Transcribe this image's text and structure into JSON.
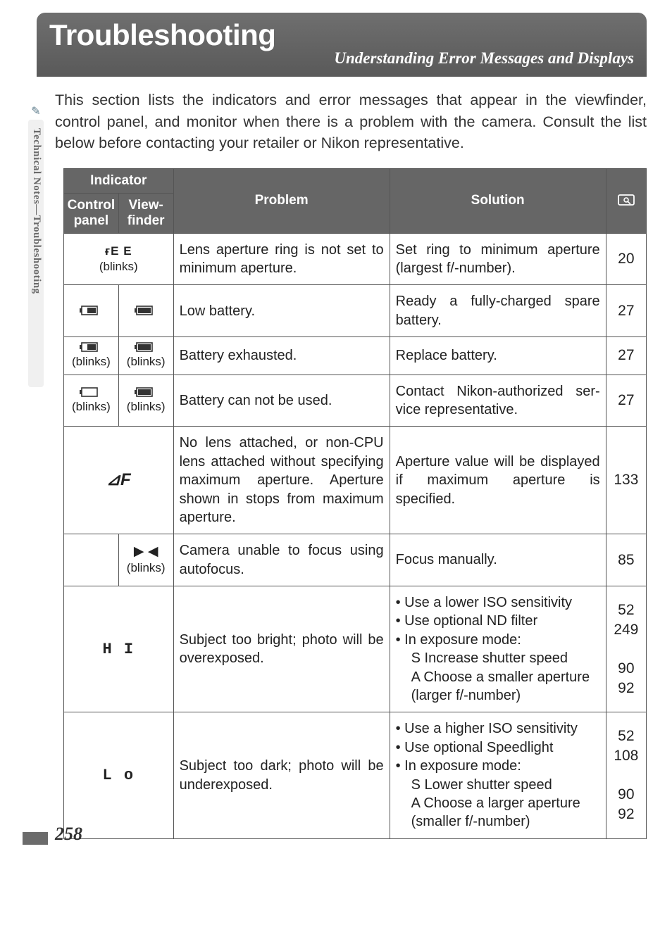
{
  "side_tab": "Technical Notes—Troubleshooting",
  "title": {
    "main": "Troubleshooting",
    "sub": "Understanding Error Messages and Displays"
  },
  "intro": "This section lists the indicators and error messages that appear in the view­finder, control panel, and monitor when there is a problem with the camera. Consult the list below before contacting your retailer or Nikon representa­tive.",
  "headers": {
    "indicator_group": "Indicator",
    "control_panel": "Control panel",
    "viewfinder": "View- finder",
    "problem": "Problem",
    "solution": "Solution"
  },
  "rows": [
    {
      "ind_merged": true,
      "ind_merged_text": "ғE E",
      "ind_merged_blinks": "(blinks)",
      "problem": "Lens aperture ring is not set to minimum aperture.",
      "solution_plain": "Set ring to minimum aperture (largest f/-number).",
      "ref": "20"
    },
    {
      "cp_icon": "batt-half",
      "vf_icon": "batt-bar",
      "problem": "Low battery.",
      "solution_plain": "Ready a fully-charged spare battery.",
      "ref": "27"
    },
    {
      "cp_icon": "batt-half",
      "cp_blinks": "(blinks)",
      "vf_icon": "batt-bar",
      "vf_blinks": "(blinks)",
      "problem": "Battery exhausted.",
      "solution_plain": "Replace battery.",
      "ref": "27"
    },
    {
      "cp_icon": "batt-empty",
      "cp_blinks": "(blinks)",
      "vf_icon": "batt-bar",
      "vf_blinks": "(blinks)",
      "problem": "Battery can not be used.",
      "solution_plain": "Contact Nikon-authorized ser­vice representative.",
      "ref": "27"
    },
    {
      "ind_merged": true,
      "ind_merged_seg": "⊿F",
      "problem": "No lens attached, or non-CPU lens attached without specifying maximum aperture. Aperture shown in stops from maximum aperture.",
      "solution_plain": "Aperture value will be dis­played if maximum aperture is specified.",
      "ref": "133"
    },
    {
      "cp_empty": true,
      "vf_text": "▶ ◀",
      "vf_blinks": "(blinks)",
      "problem": "Camera unable to focus using autofocus.",
      "solution_plain": "Focus manually.",
      "ref": "85"
    },
    {
      "ind_merged": true,
      "ind_merged_seg_text": "H I",
      "problem": "Subject too bright; photo will be overexposed.",
      "solution_list": {
        "bullets": [
          "• Use a lower ISO sensitivity",
          "• Use optional ND filter",
          "• In exposure mode:"
        ],
        "subs": [
          "S  Increase shutter speed",
          "A  Choose a smaller aperture (larger f/-number)"
        ]
      },
      "ref": "52\n249\n\n90\n92"
    },
    {
      "ind_merged": true,
      "ind_merged_seg_text": "L o",
      "problem": "Subject too dark; photo will be underexposed.",
      "solution_list": {
        "bullets": [
          "• Use a higher ISO sensitivity",
          "• Use optional Speedlight",
          "• In exposure mode:"
        ],
        "subs": [
          "S  Lower shutter speed",
          "A  Choose a larger aperture (smaller f/-number)"
        ]
      },
      "ref": "52\n108\n\n90\n92"
    }
  ],
  "page_number": "258",
  "battery_icons": {
    "batt-half": {
      "body_fill": "#333",
      "inner": "half"
    },
    "batt-bar": {
      "body_fill": "#333",
      "inner": "bar"
    },
    "batt-empty": {
      "body_fill": "none",
      "inner": "none"
    }
  }
}
